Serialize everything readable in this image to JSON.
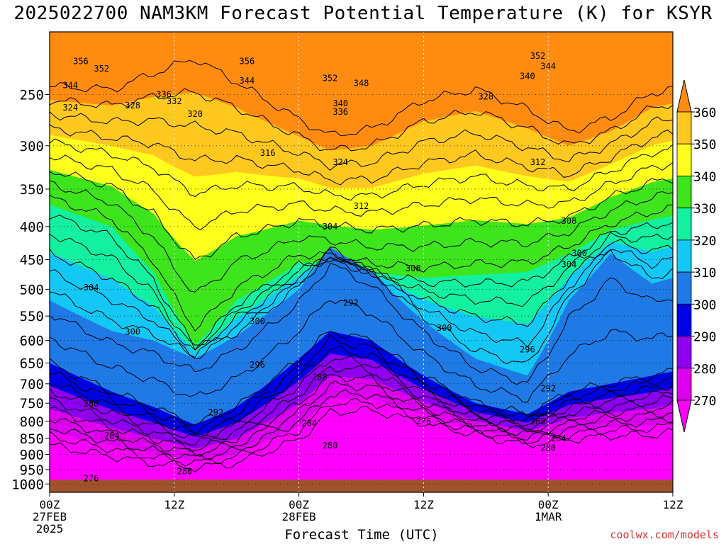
{
  "chart_data": {
    "type": "heatmap",
    "title": "2025022700 NAM3KM Forecast Potential Temperature (K) for KSYR",
    "xlabel": "Forecast Time (UTC)",
    "ylabel": "",
    "y_scale": "log",
    "ylim": [
      1030,
      200
    ],
    "y_ticks": [
      250,
      300,
      350,
      400,
      450,
      500,
      550,
      600,
      650,
      700,
      750,
      800,
      850,
      900,
      950,
      1000
    ],
    "xlim": [
      0,
      60
    ],
    "x_ticks": [
      {
        "x": 0,
        "lines": [
          "00Z",
          "27FEB",
          "2025"
        ]
      },
      {
        "x": 12,
        "lines": [
          "12Z",
          "",
          ""
        ]
      },
      {
        "x": 24,
        "lines": [
          "00Z",
          "28FEB",
          ""
        ]
      },
      {
        "x": 36,
        "lines": [
          "12Z",
          "",
          ""
        ]
      },
      {
        "x": 48,
        "lines": [
          "00Z",
          "1MAR",
          ""
        ]
      },
      {
        "x": 60,
        "lines": [
          "12Z",
          "",
          ""
        ]
      }
    ],
    "grid": true,
    "colorbar": {
      "levels": [
        270,
        280,
        290,
        300,
        310,
        320,
        330,
        340,
        350,
        360
      ],
      "bands": [
        {
          "from": 260,
          "to": 270,
          "color": "#ff00ff"
        },
        {
          "from": 270,
          "to": 280,
          "color": "#dd00ee"
        },
        {
          "from": 280,
          "to": 290,
          "color": "#8f00f0"
        },
        {
          "from": 290,
          "to": 300,
          "color": "#0000e6"
        },
        {
          "from": 300,
          "to": 310,
          "color": "#1f7ae6"
        },
        {
          "from": 310,
          "to": 320,
          "color": "#14c8f5"
        },
        {
          "from": 320,
          "to": 330,
          "color": "#12f0a0"
        },
        {
          "from": 330,
          "to": 340,
          "color": "#3ee41c"
        },
        {
          "from": 340,
          "to": 350,
          "color": "#ffff1e"
        },
        {
          "from": 350,
          "to": 360,
          "color": "#ffc81e"
        },
        {
          "from": 360,
          "to": 370,
          "color": "#ff8c10"
        }
      ]
    },
    "contour_interval": 4,
    "series": [
      {
        "x": [
          0,
          6,
          10,
          14,
          18,
          24,
          27,
          31,
          36,
          41,
          46,
          50,
          54,
          58,
          60
        ],
        "values": [
          255,
          260,
          252,
          248,
          262,
          290,
          305,
          300,
          275,
          265,
          282,
          300,
          285,
          262,
          258
        ]
      },
      {
        "x": [
          0,
          6,
          10,
          14,
          18,
          24,
          27,
          31,
          36,
          41,
          46,
          50,
          54,
          58,
          60
        ],
        "values": [
          370,
          400,
          470,
          610,
          520,
          455,
          455,
          470,
          480,
          475,
          470,
          440,
          405,
          390,
          385
        ]
      },
      {
        "x": [
          0,
          6,
          10,
          14,
          18,
          24,
          27,
          31,
          36,
          41,
          46,
          50,
          54,
          58,
          60
        ],
        "values": [
          520,
          580,
          600,
          640,
          590,
          500,
          430,
          470,
          560,
          640,
          680,
          520,
          440,
          490,
          480
        ]
      },
      {
        "x": [
          0,
          6,
          10,
          14,
          18,
          24,
          27,
          31,
          36,
          41,
          46,
          50,
          54,
          58,
          60
        ],
        "values": [
          650,
          720,
          760,
          810,
          760,
          640,
          580,
          600,
          680,
          750,
          780,
          720,
          700,
          680,
          670
        ]
      },
      {
        "x": [
          0,
          6,
          10,
          14,
          18,
          24,
          27,
          31,
          36,
          41,
          46,
          50,
          54,
          58,
          60
        ],
        "values": [
          900,
          930,
          950,
          960,
          950,
          880,
          800,
          790,
          820,
          850,
          880,
          870,
          860,
          860,
          850
        ]
      }
    ],
    "surface_pressure": 985,
    "surface_color": "#a0522d",
    "contour_labels": [
      {
        "x": 3,
        "p": 222,
        "text": "356"
      },
      {
        "x": 5,
        "p": 228,
        "text": "352"
      },
      {
        "x": 19,
        "p": 222,
        "text": "356"
      },
      {
        "x": 2,
        "p": 242,
        "text": "344"
      },
      {
        "x": 19,
        "p": 238,
        "text": "344"
      },
      {
        "x": 27,
        "p": 236,
        "text": "352"
      },
      {
        "x": 30,
        "p": 240,
        "text": "348"
      },
      {
        "x": 47,
        "p": 218,
        "text": "352"
      },
      {
        "x": 48,
        "p": 226,
        "text": "344"
      },
      {
        "x": 46,
        "p": 234,
        "text": "340"
      },
      {
        "x": 11,
        "p": 250,
        "text": "336"
      },
      {
        "x": 12,
        "p": 256,
        "text": "332"
      },
      {
        "x": 2,
        "p": 262,
        "text": "324"
      },
      {
        "x": 8,
        "p": 260,
        "text": "328"
      },
      {
        "x": 14,
        "p": 268,
        "text": "320"
      },
      {
        "x": 28,
        "p": 258,
        "text": "340"
      },
      {
        "x": 28,
        "p": 266,
        "text": "336"
      },
      {
        "x": 42,
        "p": 252,
        "text": "328"
      },
      {
        "x": 21,
        "p": 308,
        "text": "316"
      },
      {
        "x": 28,
        "p": 318,
        "text": "324"
      },
      {
        "x": 47,
        "p": 318,
        "text": "312"
      },
      {
        "x": 30,
        "p": 372,
        "text": "312"
      },
      {
        "x": 27,
        "p": 400,
        "text": "304"
      },
      {
        "x": 50,
        "p": 392,
        "text": "308"
      },
      {
        "x": 51,
        "p": 440,
        "text": "300"
      },
      {
        "x": 50,
        "p": 458,
        "text": "304"
      },
      {
        "x": 35,
        "p": 464,
        "text": "308"
      },
      {
        "x": 4,
        "p": 497,
        "text": "304"
      },
      {
        "x": 29,
        "p": 525,
        "text": "292"
      },
      {
        "x": 20,
        "p": 560,
        "text": "300"
      },
      {
        "x": 8,
        "p": 582,
        "text": "300"
      },
      {
        "x": 38,
        "p": 574,
        "text": "300"
      },
      {
        "x": 46,
        "p": 620,
        "text": "296"
      },
      {
        "x": 20,
        "p": 654,
        "text": "296"
      },
      {
        "x": 26,
        "p": 684,
        "text": "288"
      },
      {
        "x": 48,
        "p": 712,
        "text": "292"
      },
      {
        "x": 4,
        "p": 752,
        "text": "288"
      },
      {
        "x": 16,
        "p": 776,
        "text": "292"
      },
      {
        "x": 36,
        "p": 800,
        "text": "276"
      },
      {
        "x": 47,
        "p": 800,
        "text": "288"
      },
      {
        "x": 25,
        "p": 806,
        "text": "284"
      },
      {
        "x": 6,
        "p": 842,
        "text": "284"
      },
      {
        "x": 49,
        "p": 850,
        "text": "284"
      },
      {
        "x": 27,
        "p": 872,
        "text": "280"
      },
      {
        "x": 48,
        "p": 880,
        "text": "280"
      },
      {
        "x": 13,
        "p": 956,
        "text": "280"
      },
      {
        "x": 4,
        "p": 980,
        "text": "276"
      }
    ]
  },
  "credit": "coolwx.com/models"
}
